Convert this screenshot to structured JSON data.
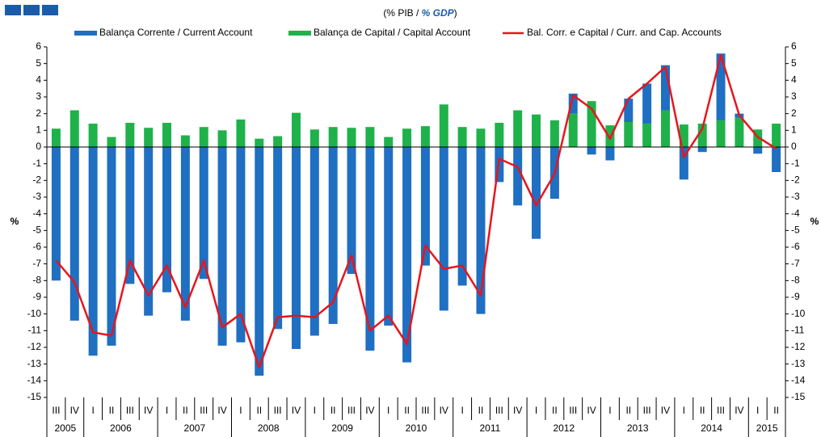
{
  "chart_data": {
    "type": "bar_line",
    "title_parts": [
      "(% PIB / ",
      "% GDP",
      ")"
    ],
    "y_label": "%",
    "y2_label": "%",
    "categories": [
      "III",
      "IV",
      "I",
      "II",
      "III",
      "IV",
      "I",
      "II",
      "III",
      "IV",
      "I",
      "II",
      "III",
      "IV",
      "I",
      "II",
      "III",
      "IV",
      "I",
      "II",
      "III",
      "IV",
      "I",
      "II",
      "III",
      "IV",
      "I",
      "II",
      "III",
      "IV",
      "I",
      "II",
      "III",
      "IV",
      "I",
      "II",
      "III",
      "IV",
      "I",
      "II"
    ],
    "years": [
      "2005",
      "2006",
      "2007",
      "2008",
      "2009",
      "2010",
      "2011",
      "2012",
      "2013",
      "2014",
      "2015"
    ],
    "series": [
      {
        "name": "Balança Corrente / Current Account",
        "kind": "bar",
        "color": "#1f6fc2",
        "values": [
          -8.0,
          -10.4,
          -12.5,
          -11.9,
          -8.2,
          -10.1,
          -8.7,
          -10.4,
          -7.9,
          -11.9,
          -11.7,
          -13.7,
          -10.9,
          -12.1,
          -11.3,
          -10.6,
          -7.6,
          -12.2,
          -10.7,
          -12.9,
          -7.1,
          -9.8,
          -8.3,
          -10.0,
          -2.1,
          -3.5,
          -5.5,
          -3.1,
          1.2,
          -0.45,
          -0.8,
          1.4,
          2.4,
          2.7,
          -1.95,
          -0.3,
          4.0,
          0.25,
          -0.4,
          -1.5
        ]
      },
      {
        "name": "Balança de Capital / Capital Account",
        "kind": "bar",
        "color": "#1fb24a",
        "values": [
          1.1,
          2.2,
          1.4,
          0.6,
          1.45,
          1.15,
          1.45,
          0.7,
          1.2,
          1.0,
          1.65,
          0.5,
          0.65,
          2.05,
          1.05,
          1.2,
          1.15,
          1.2,
          0.6,
          1.1,
          1.25,
          2.55,
          1.2,
          1.1,
          1.45,
          2.2,
          1.95,
          1.6,
          2.0,
          2.75,
          1.3,
          1.5,
          1.4,
          2.2,
          1.35,
          1.4,
          1.6,
          1.75,
          1.05,
          1.4
        ]
      },
      {
        "name": "Bal. Corr. e Capital / Curr. and Cap. Accounts",
        "kind": "line",
        "color": "#e8151b",
        "values": [
          -6.8,
          -8.1,
          -11.1,
          -11.3,
          -6.8,
          -8.9,
          -7.1,
          -9.6,
          -6.8,
          -10.8,
          -10.0,
          -13.2,
          -10.2,
          -10.1,
          -10.2,
          -9.3,
          -6.5,
          -11.0,
          -10.1,
          -11.8,
          -5.9,
          -7.3,
          -7.1,
          -8.9,
          -0.7,
          -1.2,
          -3.5,
          -1.6,
          3.1,
          2.3,
          0.5,
          2.9,
          3.8,
          4.8,
          -0.6,
          1.1,
          5.5,
          1.9,
          0.6,
          -0.1
        ]
      }
    ],
    "ylim": [
      -15,
      6
    ],
    "yticks": [
      -15,
      -14,
      -13,
      -12,
      -11,
      -10,
      -9,
      -8,
      -7,
      -6,
      -5,
      -4,
      -3,
      -2,
      -1,
      0,
      1,
      2,
      3,
      4,
      5,
      6
    ],
    "y2lim": [
      -15,
      6
    ],
    "y2ticks": [
      -15,
      -14,
      -13,
      -12,
      -11,
      -10,
      -9,
      -8,
      -7,
      -6,
      -5,
      -4,
      -3,
      -2,
      -1,
      0,
      1,
      2,
      3,
      4,
      5,
      6
    ],
    "grid": false
  }
}
